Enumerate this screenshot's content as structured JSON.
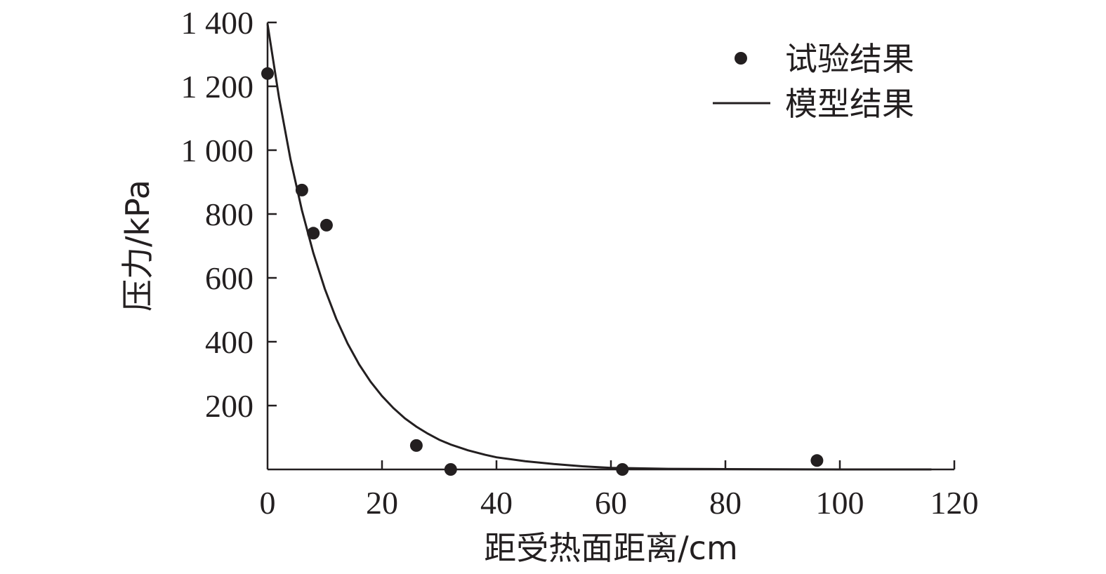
{
  "chart_data": {
    "type": "scatter",
    "title": "",
    "xlabel": "距受热面距离/cm",
    "ylabel": "压力/kPa",
    "xlim": [
      0,
      120
    ],
    "ylim": [
      0,
      1400
    ],
    "x_ticks": [
      0,
      20,
      40,
      60,
      80,
      100,
      120
    ],
    "x_tick_labels": [
      "0",
      "20",
      "40",
      "60",
      "80",
      "100",
      "120"
    ],
    "y_ticks": [
      200,
      400,
      600,
      800,
      1000,
      1200,
      1400
    ],
    "y_tick_labels": [
      "200",
      "400",
      "600",
      "800",
      "1 000",
      "1 200",
      "1 400"
    ],
    "grid": false,
    "legend_position": "top-right",
    "series": [
      {
        "name": "试验结果",
        "kind": "scatter",
        "color": "#231f20",
        "points": [
          {
            "x": 0,
            "y": 1240
          },
          {
            "x": 6,
            "y": 875
          },
          {
            "x": 8,
            "y": 740
          },
          {
            "x": 10.3,
            "y": 765
          },
          {
            "x": 26,
            "y": 75
          },
          {
            "x": 32,
            "y": 0
          },
          {
            "x": 62,
            "y": 0
          },
          {
            "x": 96,
            "y": 28
          }
        ]
      },
      {
        "name": "模型结果",
        "kind": "line",
        "color": "#231f20",
        "points": [
          {
            "x": 0,
            "y": 1395
          },
          {
            "x": 2,
            "y": 1165
          },
          {
            "x": 4,
            "y": 972
          },
          {
            "x": 6,
            "y": 812
          },
          {
            "x": 8,
            "y": 678
          },
          {
            "x": 10,
            "y": 566
          },
          {
            "x": 12,
            "y": 472
          },
          {
            "x": 14,
            "y": 394
          },
          {
            "x": 16,
            "y": 329
          },
          {
            "x": 18,
            "y": 275
          },
          {
            "x": 20,
            "y": 230
          },
          {
            "x": 22,
            "y": 192
          },
          {
            "x": 24,
            "y": 160
          },
          {
            "x": 26,
            "y": 134
          },
          {
            "x": 28,
            "y": 112
          },
          {
            "x": 30,
            "y": 93
          },
          {
            "x": 32,
            "y": 78
          },
          {
            "x": 35,
            "y": 60
          },
          {
            "x": 38,
            "y": 46
          },
          {
            "x": 40,
            "y": 38
          },
          {
            "x": 45,
            "y": 26
          },
          {
            "x": 50,
            "y": 17
          },
          {
            "x": 55,
            "y": 10
          },
          {
            "x": 60,
            "y": 5
          },
          {
            "x": 70,
            "y": 2
          },
          {
            "x": 80,
            "y": 1
          },
          {
            "x": 100,
            "y": 0
          },
          {
            "x": 116,
            "y": 0
          }
        ]
      }
    ]
  }
}
